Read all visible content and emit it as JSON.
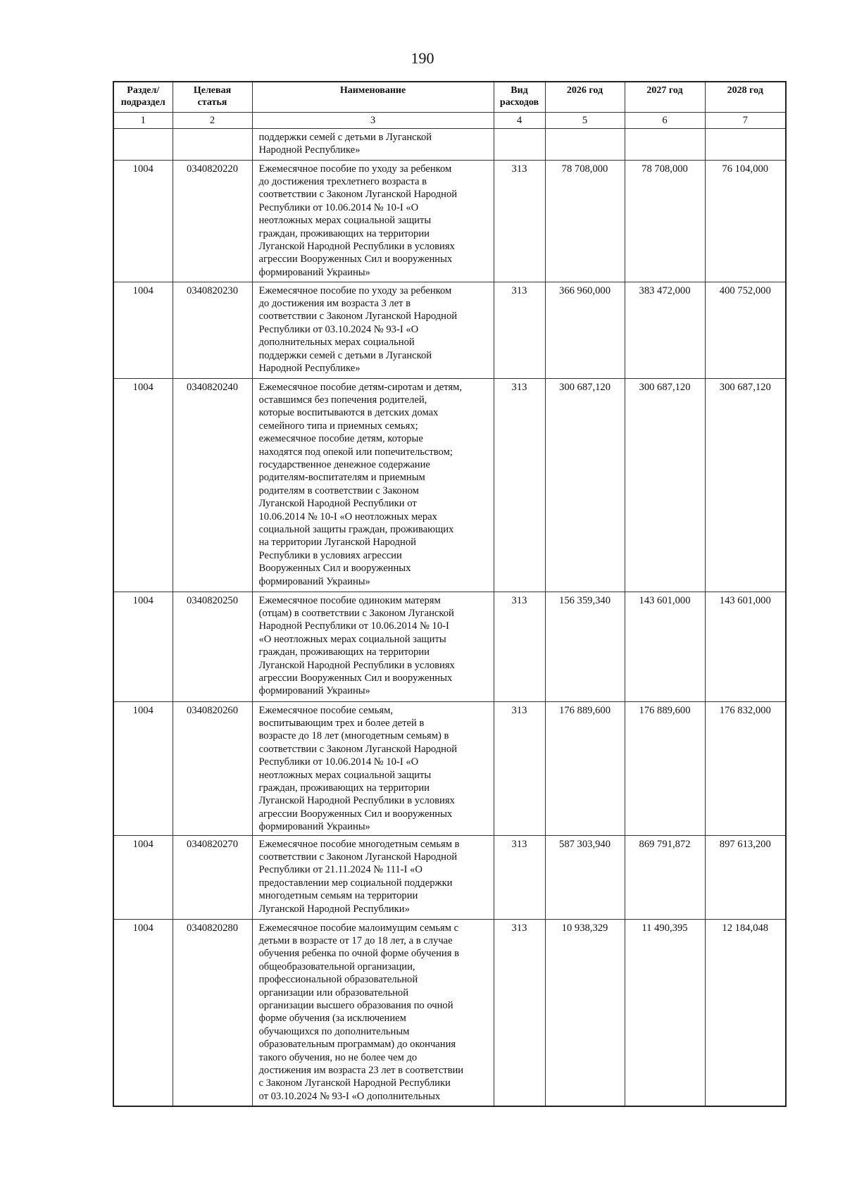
{
  "page_number": "190",
  "table": {
    "headers": [
      "Раздел/ подраздел",
      "Целевая статья",
      "Наименование",
      "Вид расходов",
      "2026 год",
      "2027 год",
      "2028 год"
    ],
    "header_lines": [
      [
        "Раздел/",
        "подраздел"
      ],
      [
        "Целевая",
        "статья"
      ],
      [
        "Наименование"
      ],
      [
        "Вид",
        "расходов"
      ],
      [
        "2026 год"
      ],
      [
        "2027 год"
      ],
      [
        "2028 год"
      ]
    ],
    "column_numbers": [
      "1",
      "2",
      "3",
      "4",
      "5",
      "6",
      "7"
    ],
    "rows": [
      {
        "section": "",
        "target": "",
        "name_lines": [
          "поддержки семей с детьми в Луганской",
          "Народной Республике»"
        ],
        "kind": "",
        "y2026": "",
        "y2027": "",
        "y2028": ""
      },
      {
        "section": "1004",
        "target": "0340820220",
        "name_lines": [
          "Ежемесячное пособие по уходу за ребенком",
          "до достижения трехлетнего возраста в",
          "соответствии с Законом Луганской Народной",
          "Республики от 10.06.2014 № 10-I «О",
          "неотложных мерах социальной защиты",
          "граждан, проживающих на территории",
          "Луганской Народной Республики в условиях",
          "агрессии Вооруженных Сил и вооруженных",
          "формирований Украины»"
        ],
        "kind": "313",
        "y2026": "78 708,000",
        "y2027": "78 708,000",
        "y2028": "76 104,000"
      },
      {
        "section": "1004",
        "target": "0340820230",
        "name_lines": [
          "Ежемесячное пособие по уходу за ребенком",
          "до достижения им возраста 3 лет в",
          "соответствии с Законом Луганской Народной",
          "Республики от 03.10.2024 № 93-I «О",
          "дополнительных мерах социальной",
          "поддержки семей с детьми в Луганской",
          "Народной Республике»"
        ],
        "kind": "313",
        "y2026": "366 960,000",
        "y2027": "383 472,000",
        "y2028": "400 752,000"
      },
      {
        "section": "1004",
        "target": "0340820240",
        "name_lines": [
          "Ежемесячное пособие детям-сиротам и детям,",
          "оставшимся без попечения родителей,",
          "которые воспитываются в детских домах",
          "семейного типа и приемных семьях;",
          "ежемесячное пособие детям, которые",
          "находятся под опекой или попечительством;",
          "государственное денежное содержание",
          "родителям-воспитателям и приемным",
          "родителям в соответствии с Законом",
          "Луганской Народной Республики от",
          "10.06.2014 № 10-I «О неотложных мерах",
          "социальной защиты граждан, проживающих",
          "на территории Луганской Народной",
          "Республики в условиях агрессии",
          "Вооруженных Сил и вооруженных",
          "формирований Украины»"
        ],
        "kind": "313",
        "y2026": "300 687,120",
        "y2027": "300 687,120",
        "y2028": "300 687,120"
      },
      {
        "section": "1004",
        "target": "0340820250",
        "name_lines": [
          "Ежемесячное пособие одиноким матерям",
          "(отцам) в соответствии с Законом Луганской",
          "Народной Республики от 10.06.2014 № 10-I",
          "«О неотложных мерах социальной защиты",
          "граждан, проживающих на территории",
          "Луганской Народной Республики в условиях",
          "агрессии Вооруженных Сил и вооруженных",
          "формирований Украины»"
        ],
        "kind": "313",
        "y2026": "156 359,340",
        "y2027": "143 601,000",
        "y2028": "143 601,000"
      },
      {
        "section": "1004",
        "target": "0340820260",
        "name_lines": [
          "Ежемесячное пособие семьям,",
          "воспитывающим трех и более детей в",
          "возрасте до 18 лет (многодетным семьям) в",
          "соответствии с Законом Луганской Народной",
          "Республики от 10.06.2014 № 10-I «О",
          "неотложных мерах социальной защиты",
          "граждан, проживающих на территории",
          "Луганской Народной Республики в условиях",
          "агрессии Вооруженных Сил и вооруженных",
          "формирований Украины»"
        ],
        "kind": "313",
        "y2026": "176 889,600",
        "y2027": "176 889,600",
        "y2028": "176 832,000"
      },
      {
        "section": "1004",
        "target": "0340820270",
        "name_lines": [
          "Ежемесячное пособие многодетным семьям в",
          "соответствии с Законом Луганской Народной",
          "Республики от 21.11.2024 № 111-I «О",
          "предоставлении мер социальной поддержки",
          "многодетным семьям на территории",
          "Луганской Народной Республики»"
        ],
        "kind": "313",
        "y2026": "587 303,940",
        "y2027": "869 791,872",
        "y2028": "897 613,200"
      },
      {
        "section": "1004",
        "target": "0340820280",
        "name_lines": [
          "Ежемесячное пособие малоимущим семьям с",
          "детьми в возрасте от 17 до 18 лет, а в случае",
          "обучения ребенка по очной форме обучения в",
          "общеобразовательной организации,",
          "профессиональной образовательной",
          "организации или образовательной",
          "организации высшего образования по очной",
          "форме обучения (за исключением",
          "обучающихся по дополнительным",
          "образовательным программам) до окончания",
          "такого обучения, но не более чем до",
          "достижения им возраста 23 лет в соответствии",
          "с Законом Луганской Народной Республики",
          "от 03.10.2024 № 93-I «О дополнительных"
        ],
        "kind": "313",
        "y2026": "10 938,329",
        "y2027": "11 490,395",
        "y2028": "12 184,048"
      }
    ]
  }
}
